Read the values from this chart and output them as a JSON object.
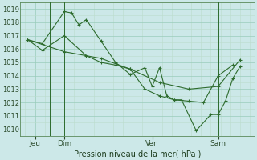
{
  "title": "Pression niveau de la mer( hPa )",
  "background_color": "#cce8e8",
  "grid_major_color": "#99ccbb",
  "grid_minor_color": "#bbddcc",
  "line_color": "#2d6b2d",
  "ylim": [
    1009.5,
    1019.5
  ],
  "yticks": [
    1010,
    1011,
    1012,
    1013,
    1014,
    1015,
    1016,
    1017,
    1018,
    1019
  ],
  "xlim": [
    0,
    16
  ],
  "day_positions": [
    1,
    3,
    9,
    13.5
  ],
  "day_labels": [
    "Jeu",
    "Dim",
    "Ven",
    "Sam"
  ],
  "vline_x": [
    2,
    3,
    9,
    13.5
  ],
  "line1_x": [
    0.5,
    1.5,
    3,
    3.5,
    4,
    4.5,
    5.5,
    6.5,
    7.5,
    8.5,
    9,
    9.5,
    10,
    10.5,
    11,
    12,
    13,
    13.5,
    14,
    14.5,
    15
  ],
  "line1_y": [
    1016.7,
    1016.4,
    1018.8,
    1018.7,
    1017.8,
    1018.2,
    1016.6,
    1015.0,
    1014.1,
    1014.6,
    1013.2,
    1014.6,
    1012.5,
    1012.2,
    1012.2,
    1009.9,
    1011.1,
    1011.1,
    1012.1,
    1013.8,
    1014.7
  ],
  "line2_x": [
    0.5,
    1.5,
    3,
    4.5,
    5.5,
    6.5,
    7.5,
    8.5,
    9.5,
    10.5,
    11.5,
    12.5,
    13.5,
    14.5
  ],
  "line2_y": [
    1016.7,
    1015.9,
    1017.0,
    1015.5,
    1015.0,
    1014.8,
    1014.5,
    1013.0,
    1012.5,
    1012.2,
    1012.1,
    1012.0,
    1014.0,
    1014.8
  ],
  "line3_x": [
    0.5,
    3,
    5.5,
    7.5,
    9.5,
    11.5,
    13.5,
    15
  ],
  "line3_y": [
    1016.7,
    1015.8,
    1015.3,
    1014.5,
    1013.5,
    1013.0,
    1013.2,
    1015.2
  ]
}
